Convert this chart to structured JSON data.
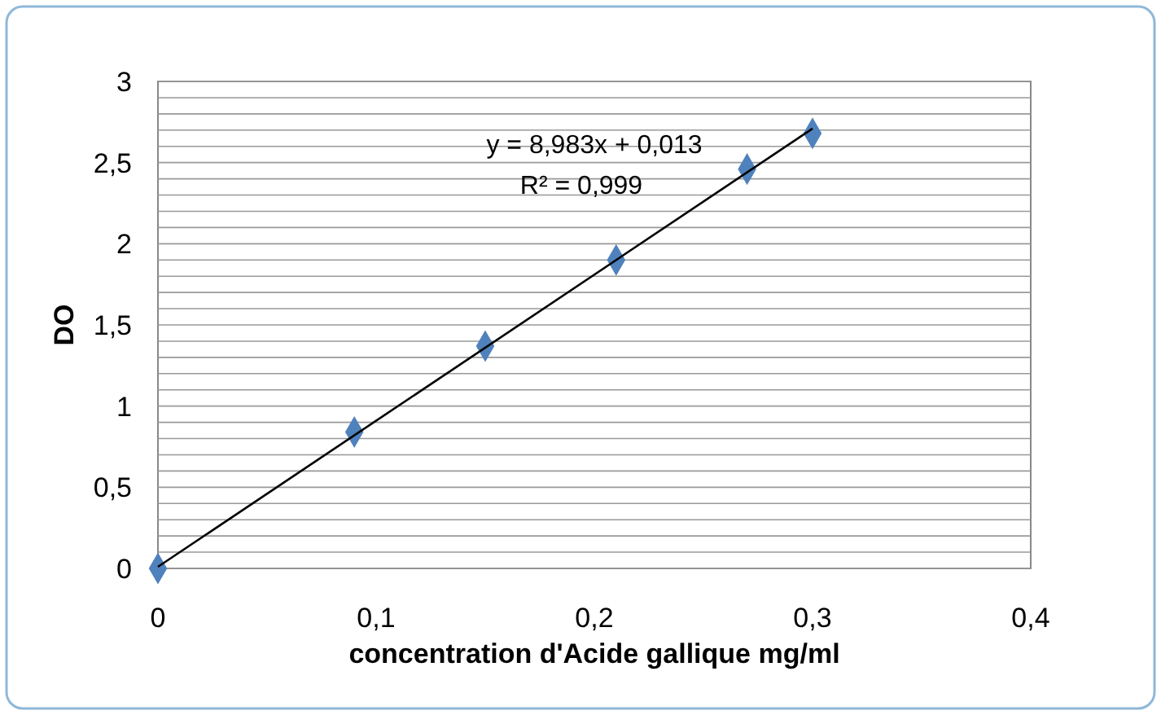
{
  "chart_data": {
    "type": "scatter",
    "ylabel": "DO",
    "xlabel": "concentration d'Acide gallique mg/ml",
    "annotations": [
      "y = 8,983x + 0,013",
      "R² = 0,999"
    ],
    "xlim": [
      0,
      0.4
    ],
    "xticks": [
      0,
      {
        "value": 0.1,
        "label": "0,1"
      },
      {
        "value": 0.2,
        "label": "0,2"
      },
      {
        "value": 0.3,
        "label": "0,3"
      },
      {
        "value": 0.4,
        "label": "0,4"
      }
    ],
    "ylim": [
      0,
      3
    ],
    "yticks": [
      0,
      {
        "value": 0.1,
        "label": null
      },
      {
        "value": 0.2,
        "label": null
      },
      {
        "value": 0.3,
        "label": null
      },
      {
        "value": 0.4,
        "label": null
      },
      {
        "value": 0.5,
        "label": "0,5"
      },
      {
        "value": 0.6,
        "label": null
      },
      {
        "value": 0.7,
        "label": null
      },
      {
        "value": 0.8,
        "label": null
      },
      {
        "value": 0.9,
        "label": null
      },
      1,
      {
        "value": 1.1,
        "label": null
      },
      {
        "value": 1.2,
        "label": null
      },
      {
        "value": 1.3,
        "label": null
      },
      {
        "value": 1.4,
        "label": null
      },
      {
        "value": 1.5,
        "label": "1,5"
      },
      {
        "value": 1.6,
        "label": null
      },
      {
        "value": 1.7,
        "label": null
      },
      {
        "value": 1.8,
        "label": null
      },
      {
        "value": 1.9,
        "label": null
      },
      2,
      {
        "value": 2.1,
        "label": null
      },
      {
        "value": 2.2,
        "label": null
      },
      {
        "value": 2.3,
        "label": null
      },
      {
        "value": 2.4,
        "label": null
      },
      {
        "value": 2.5,
        "label": "2,5"
      },
      {
        "value": 2.6,
        "label": null
      },
      {
        "value": 2.7,
        "label": null
      },
      {
        "value": 2.8,
        "label": null
      },
      {
        "value": 2.9,
        "label": null
      },
      3
    ],
    "grid": "y",
    "marker": "diamond",
    "series": [
      {
        "color": "#4f81bd",
        "x": [
          0,
          0.09,
          0.15,
          0.21,
          0.27,
          0.3
        ],
        "values": [
          0,
          0.84,
          1.37,
          1.9,
          2.46,
          2.68
        ]
      },
      {
        "type": "line",
        "color": "#000000",
        "marker": "none",
        "x": [
          0,
          0.3
        ],
        "values": [
          0.01,
          2.71
        ]
      }
    ]
  }
}
